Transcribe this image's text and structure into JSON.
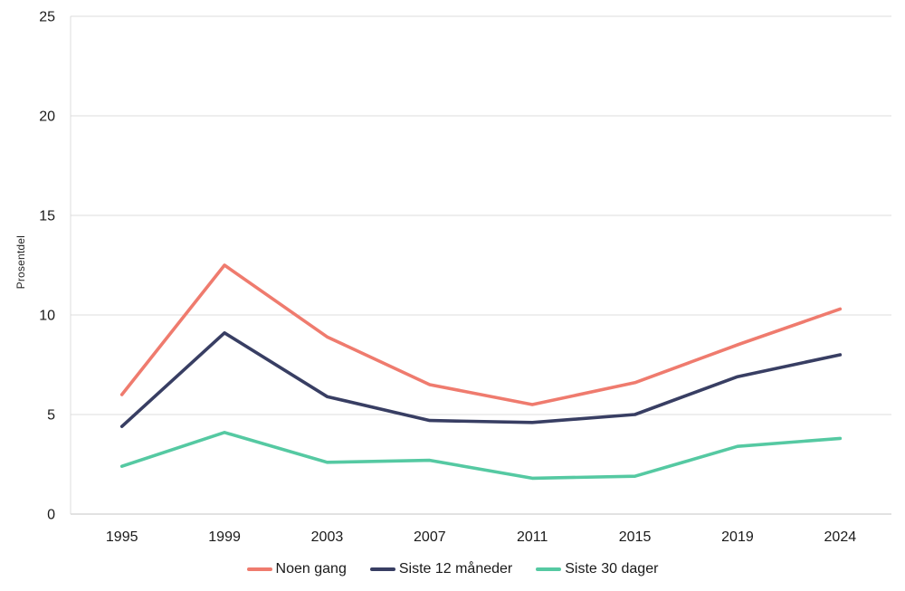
{
  "chart_data": {
    "type": "line",
    "categories": [
      "1995",
      "1999",
      "2003",
      "2007",
      "2011",
      "2015",
      "2019",
      "2024"
    ],
    "series": [
      {
        "name": "Noen gang",
        "color": "#EF7B6E",
        "values": [
          6.0,
          12.5,
          8.9,
          6.5,
          5.5,
          6.6,
          8.5,
          10.3
        ]
      },
      {
        "name": "Siste 12 måneder",
        "color": "#383E63",
        "values": [
          4.4,
          9.1,
          5.9,
          4.7,
          4.6,
          5.0,
          6.9,
          8.0
        ]
      },
      {
        "name": "Siste 30 dager",
        "color": "#55C9A2",
        "values": [
          2.4,
          4.1,
          2.6,
          2.7,
          1.8,
          1.9,
          3.4,
          3.8
        ]
      }
    ],
    "title": "",
    "xlabel": "",
    "ylabel": "Prosentdel",
    "ylim": [
      0,
      25
    ],
    "ytick_step": 5,
    "ytick_labels": [
      "0",
      "5",
      "10",
      "15",
      "20",
      "25"
    ],
    "grid": "horizontal",
    "legend_position": "bottom",
    "colors": {
      "gridline": "#DCDCDC",
      "axis_line": "#C6C6C6",
      "tick_text": "#1A1A1A",
      "background": "#FFFFFF"
    }
  }
}
